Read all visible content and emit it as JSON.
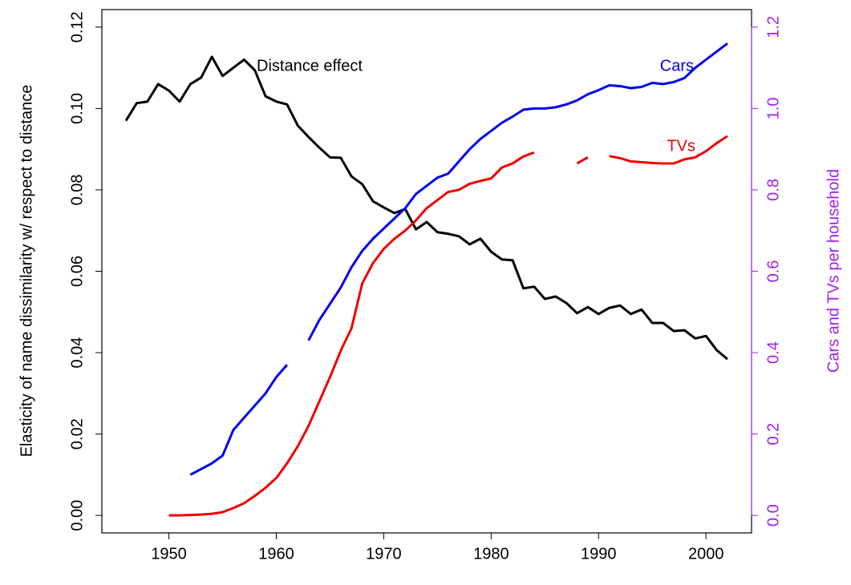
{
  "chart_data": {
    "type": "line",
    "ylabel": "Elasticity of name dissimilarity w/ respect to distance",
    "y2label": "Cars and TVs per household",
    "y2_color": "#a020f0",
    "x": [
      1946,
      1947,
      1948,
      1949,
      1950,
      1951,
      1952,
      1953,
      1954,
      1955,
      1956,
      1957,
      1958,
      1959,
      1960,
      1961,
      1962,
      1963,
      1964,
      1965,
      1966,
      1967,
      1968,
      1969,
      1970,
      1971,
      1972,
      1973,
      1974,
      1975,
      1976,
      1977,
      1978,
      1979,
      1980,
      1981,
      1982,
      1983,
      1984,
      1985,
      1986,
      1987,
      1988,
      1989,
      1990,
      1991,
      1992,
      1993,
      1994,
      1995,
      1996,
      1997,
      1998,
      1999,
      2000,
      2001,
      2002
    ],
    "xlim": [
      1943.76,
      2004.24
    ],
    "xticks": [
      1950,
      1960,
      1970,
      1980,
      1990,
      2000
    ],
    "ylim": [
      -0.0043,
      0.1243
    ],
    "yticks": [
      {
        "value": 0,
        "label": "0.00"
      },
      0.02,
      0.04,
      0.06,
      0.08,
      {
        "value": 0.1,
        "label": "0.10"
      },
      0.12
    ],
    "y2lim": [
      -0.043,
      1.243
    ],
    "y2ticks": [
      {
        "value": 0,
        "label": "0.0"
      },
      0.2,
      0.4,
      0.6,
      0.8,
      {
        "value": 1,
        "label": "1.0"
      },
      1.2
    ],
    "series": [
      {
        "name": "Distance effect",
        "color": "#000000",
        "values": [
          0.097,
          0.1013,
          0.1017,
          0.106,
          0.1044,
          0.1017,
          0.106,
          0.1076,
          0.1127,
          0.108,
          0.11,
          0.112,
          0.1094,
          0.103,
          0.1017,
          0.101,
          0.0958,
          0.093,
          0.0904,
          0.088,
          0.0879,
          0.0833,
          0.0814,
          0.0772,
          0.0757,
          0.0743,
          0.0753,
          0.0703,
          0.0721,
          0.0696,
          0.0692,
          0.0686,
          0.0666,
          0.068,
          0.0648,
          0.0629,
          0.0627,
          0.0558,
          0.0562,
          0.0532,
          0.0538,
          0.0522,
          0.0497,
          0.0512,
          0.0495,
          0.051,
          0.0516,
          0.0495,
          0.0506,
          0.0473,
          0.0473,
          0.0453,
          0.0455,
          0.0435,
          0.0441,
          0.0406,
          0.0384
        ]
      },
      {
        "name": "Cars",
        "color": "#0000ee",
        "axis": "y2",
        "values": [
          null,
          null,
          null,
          null,
          null,
          null,
          0.1,
          0.114,
          0.128,
          0.147,
          0.21,
          0.24,
          0.27,
          0.3,
          0.34,
          0.37,
          null,
          0.43,
          0.48,
          0.52,
          0.56,
          0.61,
          0.65,
          0.68,
          0.705,
          0.73,
          0.755,
          0.79,
          0.81,
          0.83,
          0.84,
          0.87,
          0.9,
          0.925,
          0.945,
          0.965,
          0.98,
          0.997,
          1.0,
          1.0,
          1.003,
          1.01,
          1.02,
          1.035,
          1.045,
          1.057,
          1.055,
          1.05,
          1.053,
          1.063,
          1.06,
          1.065,
          1.075,
          1.1,
          1.12,
          1.14,
          1.16
        ]
      },
      {
        "name": "TVs",
        "color": "#ee0000",
        "axis": "y2",
        "values": [
          null,
          null,
          null,
          null,
          0,
          0,
          0.001,
          0.002,
          0.004,
          0.008,
          0.018,
          0.03,
          0.048,
          0.068,
          0.092,
          0.128,
          0.17,
          0.22,
          0.28,
          0.34,
          0.405,
          0.46,
          0.57,
          0.62,
          0.655,
          0.68,
          0.7,
          0.725,
          0.755,
          0.775,
          0.795,
          0.8,
          0.815,
          0.822,
          0.828,
          0.855,
          0.865,
          0.882,
          0.892,
          null,
          null,
          null,
          0.865,
          0.88,
          null,
          0.883,
          0.878,
          0.87,
          0.868,
          0.866,
          0.865,
          0.865,
          0.875,
          0.88,
          0.895,
          0.915,
          0.932
        ]
      }
    ]
  }
}
